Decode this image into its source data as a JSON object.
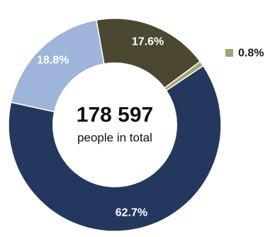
{
  "chart_data": {
    "type": "pie",
    "center_total": "178 597",
    "center_subtitle": "people in total",
    "slices": [
      {
        "label": "17.6%",
        "value": 17.6,
        "color": "#4b4730"
      },
      {
        "label": "0.8%",
        "value": 0.8,
        "color": "#a9a273"
      },
      {
        "label": "62.7%",
        "value": 62.7,
        "color": "#24385e"
      },
      {
        "label": "18.8%",
        "value": 18.8,
        "color": "#9fb4d9"
      }
    ]
  }
}
